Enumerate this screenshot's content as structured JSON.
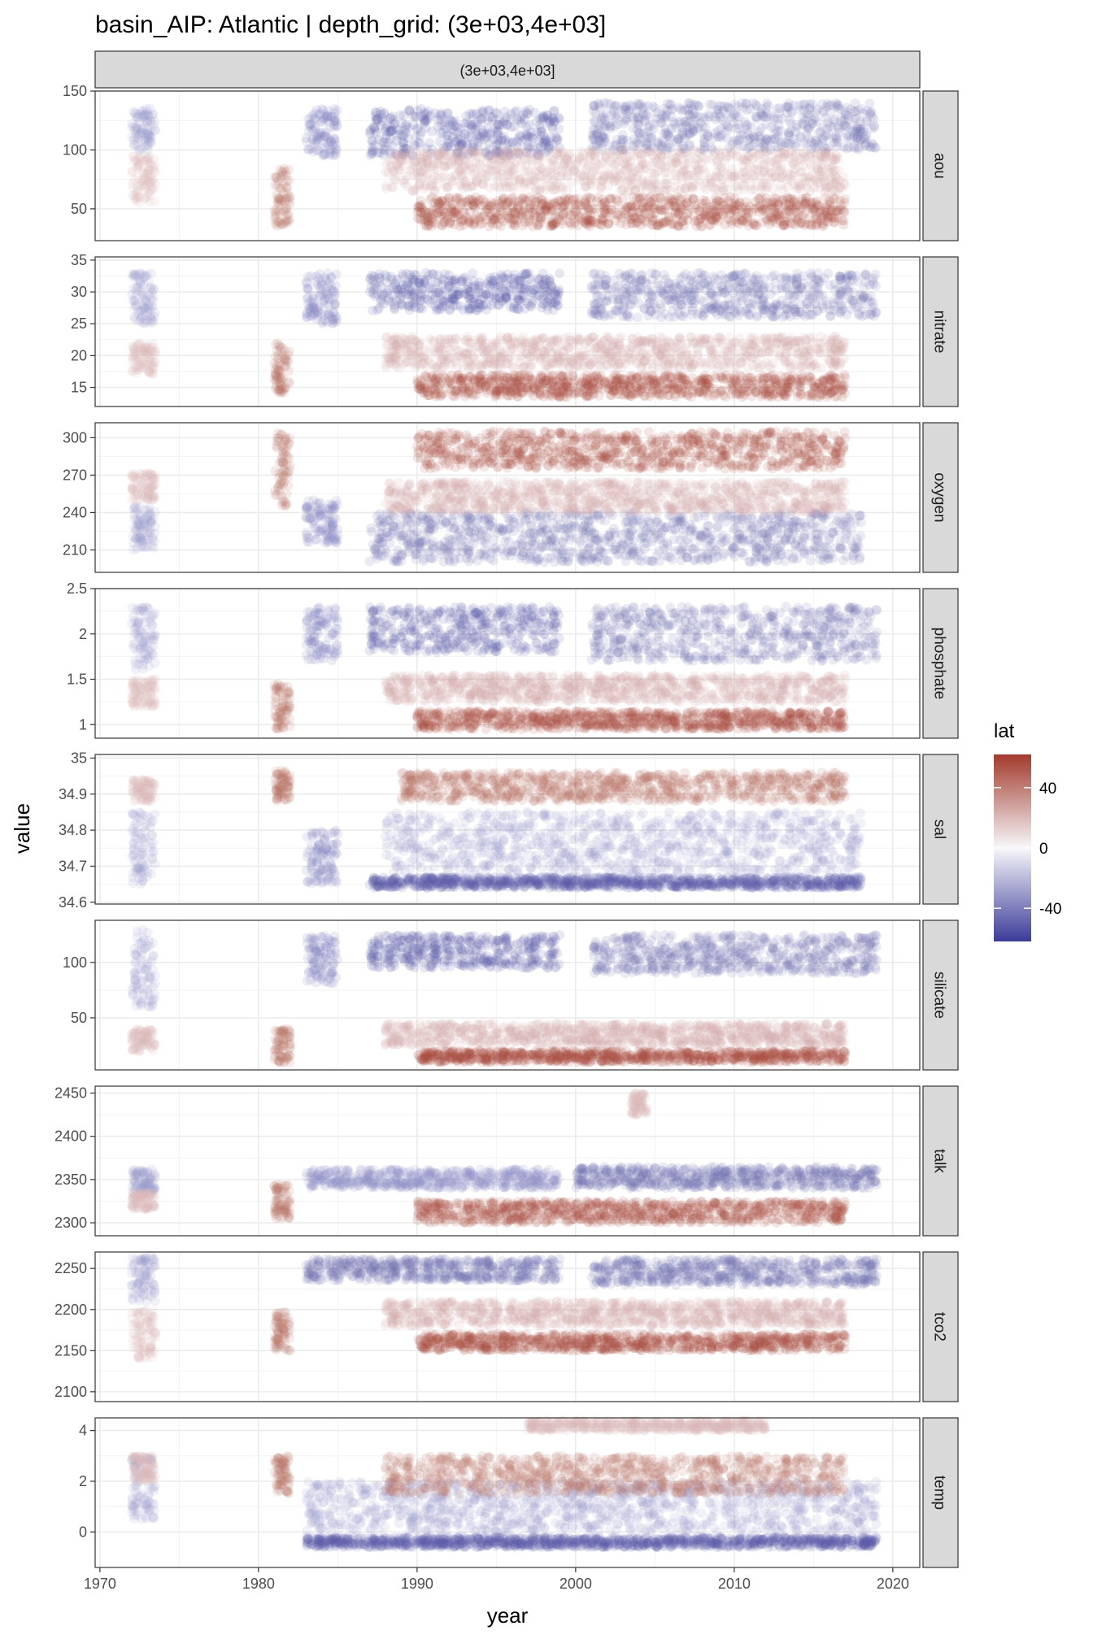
{
  "chart_data": {
    "type": "scatter",
    "title": "basin_AIP: Atlantic | depth_grid: (3e+03,4e+03]",
    "column_strip": "(3e+03,4e+03]",
    "xlabel": "year",
    "ylabel": "value",
    "x_range": [
      1969.7,
      2021.7
    ],
    "x_ticks": [
      1970,
      1980,
      1990,
      2000,
      2010,
      2020
    ],
    "grid": true,
    "legend": {
      "title": "lat",
      "position": "right",
      "ticks": [
        40,
        0,
        -40
      ],
      "limits": [
        -62,
        62
      ],
      "colors": {
        "low": "#3b3b9a",
        "mid": "#f7f7fa",
        "high": "#a23a2c"
      }
    },
    "facets": [
      {
        "name": "aou",
        "ylim": [
          23,
          150
        ],
        "ticks": [
          50,
          100,
          150
        ],
        "groups": [
          {
            "x": [
              1972,
              1973.5
            ],
            "y": [
              100,
              135
            ],
            "lat": -30
          },
          {
            "x": [
              1972,
              1973.5
            ],
            "y": [
              55,
              95
            ],
            "lat": 20
          },
          {
            "x": [
              1981,
              1982
            ],
            "y": [
              35,
              85
            ],
            "lat": 45
          },
          {
            "x": [
              1983,
              1985
            ],
            "y": [
              95,
              135
            ],
            "lat": -40
          },
          {
            "x": [
              1987,
              1999
            ],
            "y": [
              95,
              135
            ],
            "lat": -50
          },
          {
            "x": [
              1988,
              2017
            ],
            "y": [
              65,
              100
            ],
            "lat": 25
          },
          {
            "x": [
              1990,
              2017
            ],
            "y": [
              35,
              60
            ],
            "lat": 55
          },
          {
            "x": [
              2001,
              2019
            ],
            "y": [
              100,
              140
            ],
            "lat": -45
          }
        ]
      },
      {
        "name": "nitrate",
        "ylim": [
          12,
          35.5
        ],
        "ticks": [
          15,
          20,
          25,
          30,
          35
        ],
        "groups": [
          {
            "x": [
              1972,
              1973.5
            ],
            "y": [
              25,
              33
            ],
            "lat": -30
          },
          {
            "x": [
              1972,
              1973.5
            ],
            "y": [
              17,
              22
            ],
            "lat": 20
          },
          {
            "x": [
              1981,
              1982
            ],
            "y": [
              14,
              22
            ],
            "lat": 45
          },
          {
            "x": [
              1983,
              1985
            ],
            "y": [
              25,
              33
            ],
            "lat": -40
          },
          {
            "x": [
              1987,
              1999
            ],
            "y": [
              27,
              33
            ],
            "lat": -50
          },
          {
            "x": [
              1988,
              2017
            ],
            "y": [
              18,
              23
            ],
            "lat": 25
          },
          {
            "x": [
              1990,
              2017
            ],
            "y": [
              13.5,
              17
            ],
            "lat": 55
          },
          {
            "x": [
              2001,
              2019
            ],
            "y": [
              26,
              33
            ],
            "lat": -45
          }
        ]
      },
      {
        "name": "oxygen",
        "ylim": [
          192,
          312
        ],
        "ticks": [
          210,
          240,
          270,
          300
        ],
        "groups": [
          {
            "x": [
              1972,
              1973.5
            ],
            "y": [
              210,
              245
            ],
            "lat": -30
          },
          {
            "x": [
              1972,
              1973.5
            ],
            "y": [
              250,
              272
            ],
            "lat": 20
          },
          {
            "x": [
              1981,
              1982
            ],
            "y": [
              245,
              305
            ],
            "lat": 45
          },
          {
            "x": [
              1983,
              1985
            ],
            "y": [
              215,
              250
            ],
            "lat": -40
          },
          {
            "x": [
              1987,
              2018
            ],
            "y": [
              200,
              240
            ],
            "lat": -45
          },
          {
            "x": [
              1988,
              2017
            ],
            "y": [
              240,
              265
            ],
            "lat": 25
          },
          {
            "x": [
              1990,
              2017
            ],
            "y": [
              275,
              305
            ],
            "lat": 55
          }
        ]
      },
      {
        "name": "phosphate",
        "ylim": [
          0.85,
          2.5
        ],
        "ticks": [
          1.0,
          1.5,
          2.0,
          2.5
        ],
        "groups": [
          {
            "x": [
              1972,
              1973.5
            ],
            "y": [
              1.6,
              2.3
            ],
            "lat": -30
          },
          {
            "x": [
              1972,
              1973.5
            ],
            "y": [
              1.2,
              1.5
            ],
            "lat": 20
          },
          {
            "x": [
              1981,
              1982
            ],
            "y": [
              0.95,
              1.45
            ],
            "lat": 45
          },
          {
            "x": [
              1983,
              1985
            ],
            "y": [
              1.7,
              2.3
            ],
            "lat": -40
          },
          {
            "x": [
              1987,
              1999
            ],
            "y": [
              1.8,
              2.3
            ],
            "lat": -50
          },
          {
            "x": [
              1988,
              2017
            ],
            "y": [
              1.25,
              1.55
            ],
            "lat": 25
          },
          {
            "x": [
              1990,
              2017
            ],
            "y": [
              0.95,
              1.15
            ],
            "lat": 55
          },
          {
            "x": [
              2001,
              2019
            ],
            "y": [
              1.7,
              2.3
            ],
            "lat": -45
          }
        ]
      },
      {
        "name": "sal",
        "ylim": [
          34.595,
          35.01
        ],
        "ticks": [
          34.6,
          34.7,
          34.8,
          34.9,
          35.0
        ],
        "groups": [
          {
            "x": [
              1972,
              1973.5
            ],
            "y": [
              34.65,
              34.85
            ],
            "lat": -30
          },
          {
            "x": [
              1972,
              1973.5
            ],
            "y": [
              34.88,
              34.94
            ],
            "lat": 20
          },
          {
            "x": [
              1981,
              1982
            ],
            "y": [
              34.88,
              34.97
            ],
            "lat": 45
          },
          {
            "x": [
              1983,
              1985
            ],
            "y": [
              34.65,
              34.8
            ],
            "lat": -40
          },
          {
            "x": [
              1987,
              2018
            ],
            "y": [
              34.64,
              34.67
            ],
            "lat": -50
          },
          {
            "x": [
              1988,
              2018
            ],
            "y": [
              34.68,
              34.85
            ],
            "lat": -30
          },
          {
            "x": [
              1989,
              2017
            ],
            "y": [
              34.88,
              34.96
            ],
            "lat": 45
          }
        ]
      },
      {
        "name": "silicate",
        "ylim": [
          3,
          138
        ],
        "ticks": [
          50,
          100
        ],
        "groups": [
          {
            "x": [
              1972,
              1973.5
            ],
            "y": [
              60,
              130
            ],
            "lat": -30
          },
          {
            "x": [
              1972,
              1973.5
            ],
            "y": [
              20,
              40
            ],
            "lat": 20
          },
          {
            "x": [
              1981,
              1982
            ],
            "y": [
              10,
              40
            ],
            "lat": 45
          },
          {
            "x": [
              1983,
              1985
            ],
            "y": [
              80,
              125
            ],
            "lat": -40
          },
          {
            "x": [
              1987,
              1999
            ],
            "y": [
              95,
              125
            ],
            "lat": -50
          },
          {
            "x": [
              1988,
              2017
            ],
            "y": [
              25,
              45
            ],
            "lat": 25
          },
          {
            "x": [
              1990,
              2017
            ],
            "y": [
              10,
              20
            ],
            "lat": 55
          },
          {
            "x": [
              2001,
              2019
            ],
            "y": [
              90,
              125
            ],
            "lat": -45
          }
        ]
      },
      {
        "name": "talk",
        "ylim": [
          2285,
          2458
        ],
        "ticks": [
          2300,
          2350,
          2400,
          2450
        ],
        "groups": [
          {
            "x": [
              1972,
              1973.5
            ],
            "y": [
              2335,
              2362
            ],
            "lat": -30
          },
          {
            "x": [
              1972,
              1973.5
            ],
            "y": [
              2315,
              2335
            ],
            "lat": 20
          },
          {
            "x": [
              1981,
              1982
            ],
            "y": [
              2305,
              2345
            ],
            "lat": 45
          },
          {
            "x": [
              1983,
              1999
            ],
            "y": [
              2340,
              2362
            ],
            "lat": -35
          },
          {
            "x": [
              1990,
              2017
            ],
            "y": [
              2300,
              2325
            ],
            "lat": 55
          },
          {
            "x": [
              2000,
              2019
            ],
            "y": [
              2340,
              2365
            ],
            "lat": -45
          },
          {
            "x": [
              2003.5,
              2004.5
            ],
            "y": [
              2425,
              2450
            ],
            "lat": 20
          }
        ]
      },
      {
        "name": "tco2",
        "ylim": [
          2088,
          2270
        ],
        "ticks": [
          2100,
          2150,
          2200,
          2250
        ],
        "groups": [
          {
            "x": [
              1972,
              1973.5
            ],
            "y": [
              2210,
              2265
            ],
            "lat": -30
          },
          {
            "x": [
              1972,
              1973.5
            ],
            "y": [
              2140,
              2200
            ],
            "lat": 20
          },
          {
            "x": [
              1981,
              1982
            ],
            "y": [
              2150,
              2200
            ],
            "lat": 45
          },
          {
            "x": [
              1983,
              1999
            ],
            "y": [
              2235,
              2262
            ],
            "lat": -45
          },
          {
            "x": [
              1988,
              2017
            ],
            "y": [
              2180,
              2210
            ],
            "lat": 25
          },
          {
            "x": [
              1990,
              2017
            ],
            "y": [
              2150,
              2170
            ],
            "lat": 55
          },
          {
            "x": [
              2001,
              2019
            ],
            "y": [
              2230,
              2262
            ],
            "lat": -45
          }
        ]
      },
      {
        "name": "temp",
        "ylim": [
          -1.4,
          4.5
        ],
        "ticks": [
          0,
          2,
          4
        ],
        "groups": [
          {
            "x": [
              1972,
              1973.5
            ],
            "y": [
              0.5,
              3
            ],
            "lat": -30
          },
          {
            "x": [
              1972,
              1973.5
            ],
            "y": [
              2,
              3
            ],
            "lat": 20
          },
          {
            "x": [
              1981,
              1982
            ],
            "y": [
              1.5,
              3
            ],
            "lat": 45
          },
          {
            "x": [
              1983,
              2019
            ],
            "y": [
              -0.6,
              -0.2
            ],
            "lat": -50
          },
          {
            "x": [
              1983,
              2019
            ],
            "y": [
              0,
              2
            ],
            "lat": -30
          },
          {
            "x": [
              1988,
              2017
            ],
            "y": [
              1.5,
              3
            ],
            "lat": 45
          },
          {
            "x": [
              1997,
              2012
            ],
            "y": [
              4,
              4.4
            ],
            "lat": 20
          }
        ]
      }
    ]
  }
}
